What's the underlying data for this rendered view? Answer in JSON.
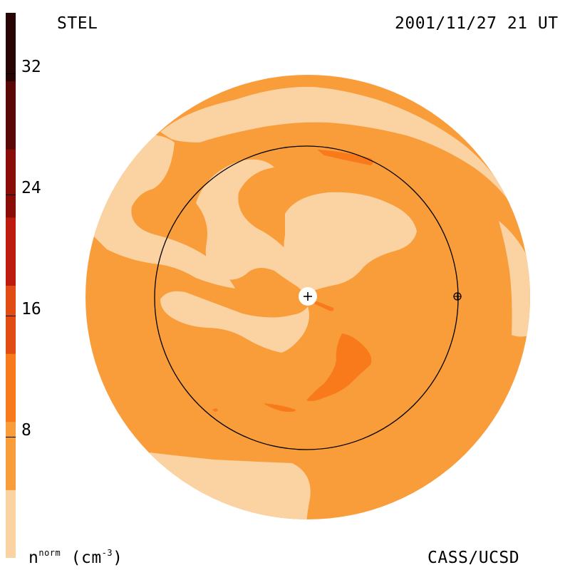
{
  "header": {
    "observatory": "STEL",
    "datetime": "2001/11/27 21 UT"
  },
  "footer": {
    "quantity_main": "n",
    "quantity_sup": "norm",
    "units_open": "(cm",
    "units_sup": "-3",
    "units_close": ")",
    "credit": "CASS/UCSD"
  },
  "colorbar": {
    "levels": [
      "#fbd2a2",
      "#f99d3b",
      "#f97a1a",
      "#e14b14",
      "#bd1a10",
      "#8a0c09",
      "#5a0807",
      "#260504"
    ],
    "ticks": [
      {
        "value": 8,
        "label": "8"
      },
      {
        "value": 16,
        "label": "16"
      },
      {
        "value": 24,
        "label": "24"
      },
      {
        "value": 32,
        "label": "32"
      }
    ],
    "range": [
      0,
      36
    ]
  },
  "map": {
    "colors": {
      "light": "#fbd2a2",
      "mid": "#f99d3b",
      "high": "#f97a1a"
    },
    "sun_marker": "sun-plus-icon",
    "earth_marker": "earth-circle-plus-icon"
  }
}
